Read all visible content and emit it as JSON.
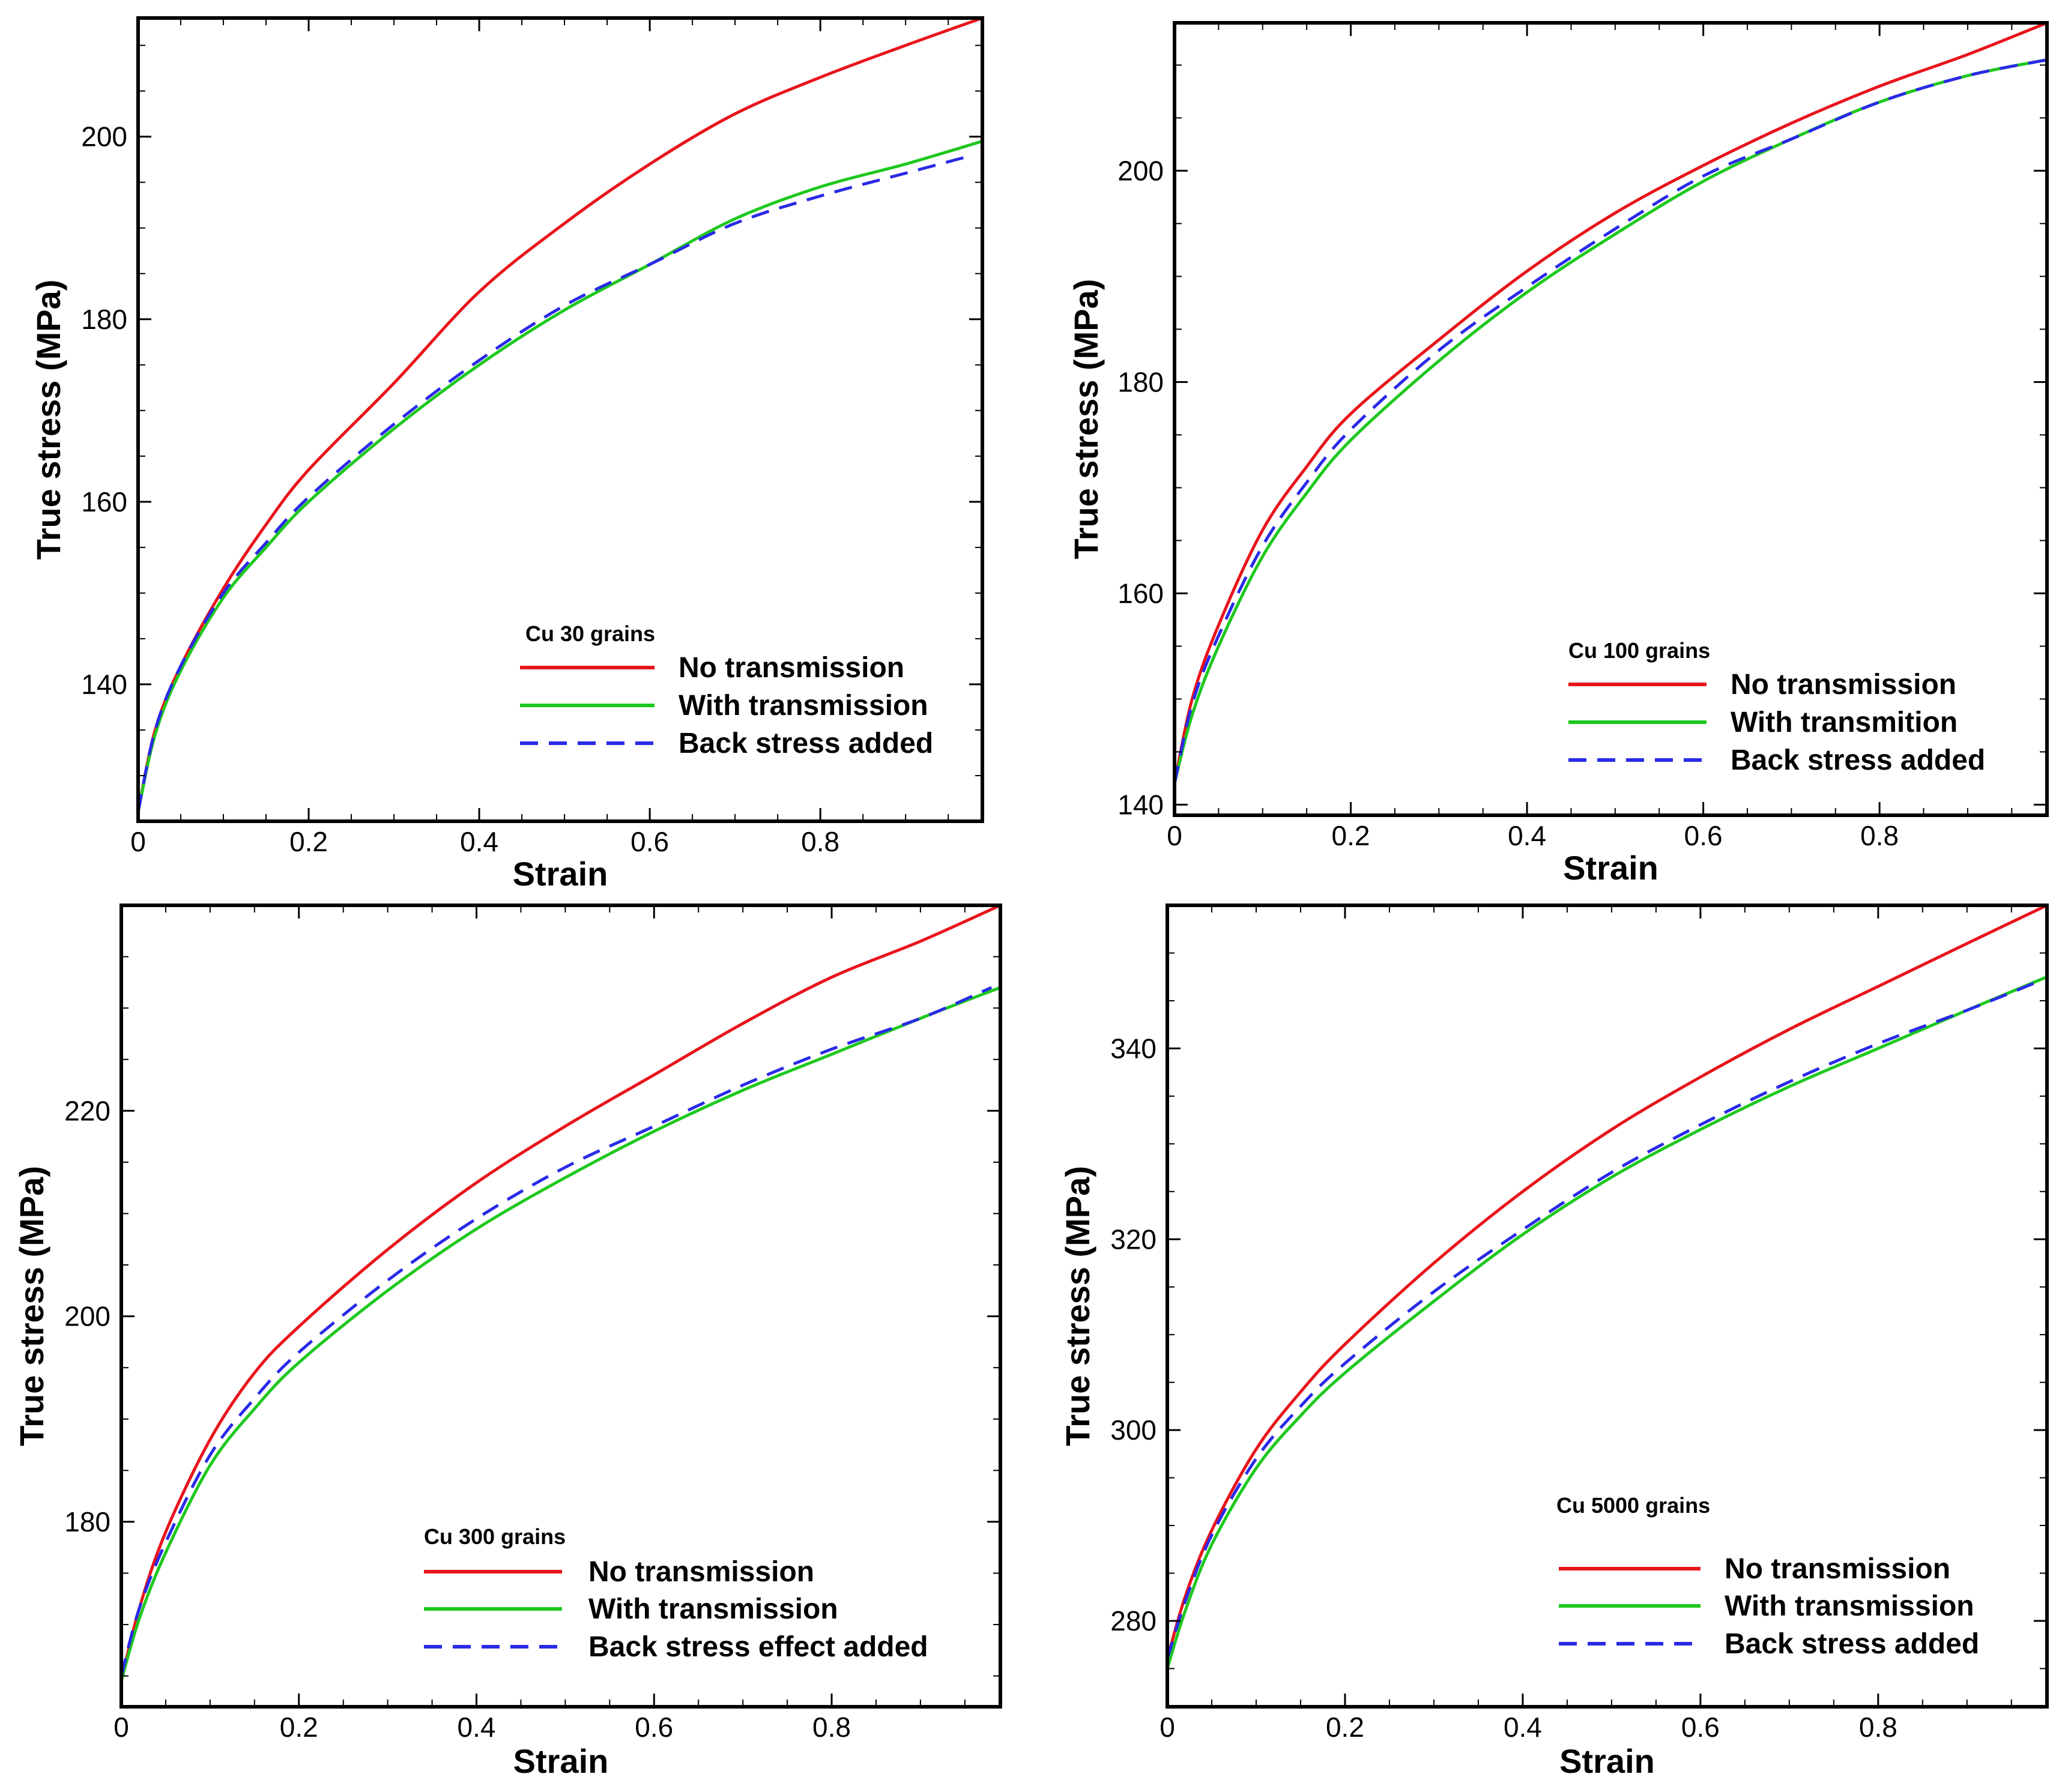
{
  "chart_data": [
    {
      "type": "line",
      "panel": "top-left",
      "legend_title": "Cu 30 grains",
      "xlabel": "Strain",
      "ylabel": "True stress (MPa)",
      "xlim": [
        0,
        0.99
      ],
      "ylim": [
        125,
        213
      ],
      "xticks": [
        0,
        0.2,
        0.4,
        0.6,
        0.8
      ],
      "xtick_labels": [
        "0",
        "0.2",
        "0.4",
        "0.6",
        "0.8"
      ],
      "yticks": [
        140,
        160,
        180,
        200
      ],
      "ytick_labels": [
        "140",
        "160",
        "180",
        "200"
      ],
      "series": [
        {
          "name": "No transmission",
          "color": "#e8141b",
          "style": "solid",
          "x": [
            0,
            0.02,
            0.05,
            0.1,
            0.15,
            0.2,
            0.3,
            0.4,
            0.5,
            0.6,
            0.7,
            0.8,
            0.9,
            0.99
          ],
          "y": [
            126,
            135,
            142,
            150.5,
            157.5,
            163.5,
            173,
            183,
            190.5,
            197,
            202.5,
            206.5,
            210,
            213
          ]
        },
        {
          "name": "With transmission",
          "color": "#1ec81e",
          "style": "solid",
          "x": [
            0,
            0.02,
            0.05,
            0.1,
            0.15,
            0.2,
            0.3,
            0.4,
            0.5,
            0.6,
            0.7,
            0.8,
            0.9,
            0.99
          ],
          "y": [
            126,
            134.5,
            141.5,
            149.5,
            155,
            160,
            168,
            175,
            181,
            186,
            191,
            194.5,
            197,
            199.5
          ]
        },
        {
          "name": "Back stress added",
          "color": "#2a2ae8",
          "style": "dashed",
          "x": [
            0,
            0.02,
            0.05,
            0.1,
            0.15,
            0.2,
            0.3,
            0.4,
            0.5,
            0.6,
            0.7,
            0.8,
            0.9,
            0.98
          ],
          "y": [
            126,
            135,
            142,
            150,
            155.5,
            160.5,
            168.5,
            175.5,
            181.5,
            186,
            190.5,
            193.5,
            196,
            198
          ]
        }
      ]
    },
    {
      "type": "line",
      "panel": "top-right",
      "legend_title": "Cu 100 grains",
      "xlabel": "Strain",
      "ylabel": "True stress (MPa)",
      "xlim": [
        0,
        0.99
      ],
      "ylim": [
        139,
        214
      ],
      "xticks": [
        0,
        0.2,
        0.4,
        0.6,
        0.8
      ],
      "xtick_labels": [
        "0",
        "0.2",
        "0.4",
        "0.6",
        "0.8"
      ],
      "yticks": [
        140,
        160,
        180,
        200
      ],
      "ytick_labels": [
        "140",
        "160",
        "180",
        "200"
      ],
      "series": [
        {
          "name": "No transmission",
          "color": "#e8141b",
          "style": "solid",
          "x": [
            0,
            0.02,
            0.05,
            0.1,
            0.15,
            0.2,
            0.3,
            0.4,
            0.5,
            0.6,
            0.7,
            0.8,
            0.9,
            0.99
          ],
          "y": [
            142,
            150,
            157,
            166,
            172,
            177,
            184,
            190.5,
            196,
            200.5,
            204.5,
            208,
            211,
            214
          ]
        },
        {
          "name": "With transmition",
          "color": "#1ec81e",
          "style": "solid",
          "x": [
            0,
            0.02,
            0.05,
            0.1,
            0.15,
            0.2,
            0.3,
            0.4,
            0.5,
            0.6,
            0.7,
            0.8,
            0.9,
            0.99
          ],
          "y": [
            142,
            148.5,
            155,
            163.5,
            169.5,
            174.5,
            182,
            188.5,
            194,
            199,
            203,
            206.5,
            209,
            210.5
          ]
        },
        {
          "name": "Back stress added",
          "color": "#2a2ae8",
          "style": "dashed",
          "x": [
            0,
            0.02,
            0.05,
            0.1,
            0.15,
            0.2,
            0.3,
            0.4,
            0.5,
            0.6,
            0.7,
            0.8,
            0.9,
            0.99
          ],
          "y": [
            142,
            149.5,
            156,
            164.5,
            170.5,
            175.5,
            183,
            189,
            194.5,
            199.5,
            203,
            206.5,
            209,
            210.5
          ]
        }
      ]
    },
    {
      "type": "line",
      "panel": "bottom-left",
      "legend_title": "Cu 300 grains",
      "xlabel": "Strain",
      "ylabel": "True stress (MPa)",
      "xlim": [
        0,
        0.99
      ],
      "ylim": [
        162,
        240
      ],
      "xticks": [
        0,
        0.2,
        0.4,
        0.6,
        0.8
      ],
      "xtick_labels": [
        "0",
        "0.2",
        "0.4",
        "0.6",
        "0.8"
      ],
      "yticks": [
        180,
        200,
        220
      ],
      "ytick_labels": [
        "180",
        "200",
        "220"
      ],
      "series": [
        {
          "name": "No transmission",
          "color": "#e8141b",
          "style": "solid",
          "x": [
            0,
            0.02,
            0.05,
            0.1,
            0.15,
            0.2,
            0.3,
            0.4,
            0.5,
            0.6,
            0.7,
            0.8,
            0.9,
            0.99
          ],
          "y": [
            164.5,
            171.5,
            179,
            188,
            194.5,
            199,
            206.5,
            213,
            218.5,
            223.5,
            228.5,
            233,
            236.5,
            240
          ]
        },
        {
          "name": "With transmission",
          "color": "#1ec81e",
          "style": "solid",
          "x": [
            0,
            0.02,
            0.05,
            0.1,
            0.15,
            0.2,
            0.3,
            0.4,
            0.5,
            0.6,
            0.7,
            0.8,
            0.9,
            0.99
          ],
          "y": [
            164.5,
            170.5,
            177,
            185.5,
            191,
            195.5,
            202.5,
            208.5,
            213.5,
            218,
            222,
            225.5,
            229,
            232
          ]
        },
        {
          "name": "Back stress effect added",
          "color": "#2a2ae8",
          "style": "dashed",
          "x": [
            0,
            0.02,
            0.05,
            0.1,
            0.15,
            0.2,
            0.3,
            0.4,
            0.5,
            0.6,
            0.7,
            0.8,
            0.9,
            0.98
          ],
          "y": [
            165,
            171.5,
            178,
            186.5,
            192,
            196.5,
            203.5,
            209.5,
            214.5,
            218.5,
            222.5,
            226,
            229,
            232
          ]
        }
      ]
    },
    {
      "type": "line",
      "panel": "bottom-right",
      "legend_title": "Cu 5000 grains",
      "xlabel": "Strain",
      "ylabel": "True stress (MPa)",
      "xlim": [
        0,
        0.99
      ],
      "ylim": [
        271,
        355
      ],
      "xticks": [
        0,
        0.2,
        0.4,
        0.6,
        0.8
      ],
      "xtick_labels": [
        "0",
        "0.2",
        "0.4",
        "0.6",
        "0.8"
      ],
      "yticks": [
        280,
        300,
        320,
        340
      ],
      "ytick_labels": [
        "280",
        "300",
        "320",
        "340"
      ],
      "series": [
        {
          "name": "No transmission",
          "color": "#e8141b",
          "style": "solid",
          "x": [
            0,
            0.02,
            0.05,
            0.1,
            0.15,
            0.2,
            0.3,
            0.4,
            0.5,
            0.6,
            0.7,
            0.8,
            0.9,
            0.99
          ],
          "y": [
            276,
            282.5,
            289.5,
            298,
            304,
            309,
            317.5,
            325,
            331.5,
            337,
            342,
            346.5,
            351,
            355
          ]
        },
        {
          "name": "With transmission",
          "color": "#1ec81e",
          "style": "solid",
          "x": [
            0,
            0.02,
            0.05,
            0.1,
            0.15,
            0.2,
            0.3,
            0.4,
            0.5,
            0.6,
            0.7,
            0.8,
            0.9,
            0.99
          ],
          "y": [
            275,
            281,
            288,
            296,
            301.5,
            306,
            313.5,
            320.5,
            326.5,
            331.5,
            336,
            340,
            344,
            347.5
          ]
        },
        {
          "name": "Back stress added",
          "color": "#2a2ae8",
          "style": "dashed",
          "x": [
            0,
            0.02,
            0.05,
            0.1,
            0.15,
            0.2,
            0.3,
            0.4,
            0.5,
            0.6,
            0.7,
            0.8,
            0.9,
            0.98
          ],
          "y": [
            276,
            282,
            289,
            297,
            302.5,
            307,
            314.5,
            321,
            327,
            332,
            336.5,
            340.5,
            344,
            347
          ]
        }
      ]
    }
  ]
}
